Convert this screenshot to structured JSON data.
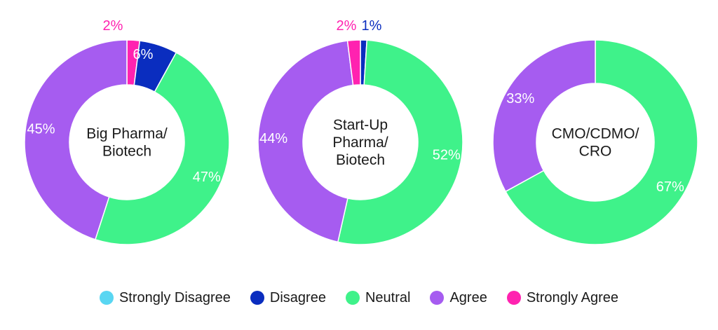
{
  "chart_data": {
    "type": "pie",
    "subtype": "donut",
    "categories": [
      "Strongly Disagree",
      "Disagree",
      "Neutral",
      "Agree",
      "Strongly Agree"
    ],
    "colors": {
      "Strongly Disagree": "#59d6f2",
      "Disagree": "#0a2dbf",
      "Neutral": "#3ff28a",
      "Agree": "#a65cf0",
      "Strongly Agree": "#ff22b0"
    },
    "charts": [
      {
        "id": "big-pharma",
        "title_lines": [
          "Big Pharma/",
          "Biotech"
        ],
        "slices": [
          {
            "category": "Strongly Agree",
            "value": 2,
            "label": "2%"
          },
          {
            "category": "Disagree",
            "value": 6,
            "label": "6%"
          },
          {
            "category": "Neutral",
            "value": 47,
            "label": "47%"
          },
          {
            "category": "Agree",
            "value": 45,
            "label": "45%"
          }
        ]
      },
      {
        "id": "start-up",
        "title_lines": [
          "Start-Up",
          "Pharma/",
          "Biotech"
        ],
        "slices": [
          {
            "category": "Disagree",
            "value": 1,
            "label": "1%"
          },
          {
            "category": "Neutral",
            "value": 52,
            "label": "52%"
          },
          {
            "category": "Agree",
            "value": 44,
            "label": "44%"
          },
          {
            "category": "Strongly Agree",
            "value": 2,
            "label": "2%"
          }
        ]
      },
      {
        "id": "cmo",
        "title_lines": [
          "CMO/CDMO/",
          "CRO"
        ],
        "slices": [
          {
            "category": "Neutral",
            "value": 67,
            "label": "67%"
          },
          {
            "category": "Agree",
            "value": 33,
            "label": "33%"
          }
        ]
      }
    ]
  },
  "legend": [
    {
      "label": "Strongly Disagree",
      "color": "#59d6f2"
    },
    {
      "label": "Disagree",
      "color": "#0a2dbf"
    },
    {
      "label": "Neutral",
      "color": "#3ff28a"
    },
    {
      "label": "Agree",
      "color": "#a65cf0"
    },
    {
      "label": "Strongly Agree",
      "color": "#ff22b0"
    }
  ]
}
